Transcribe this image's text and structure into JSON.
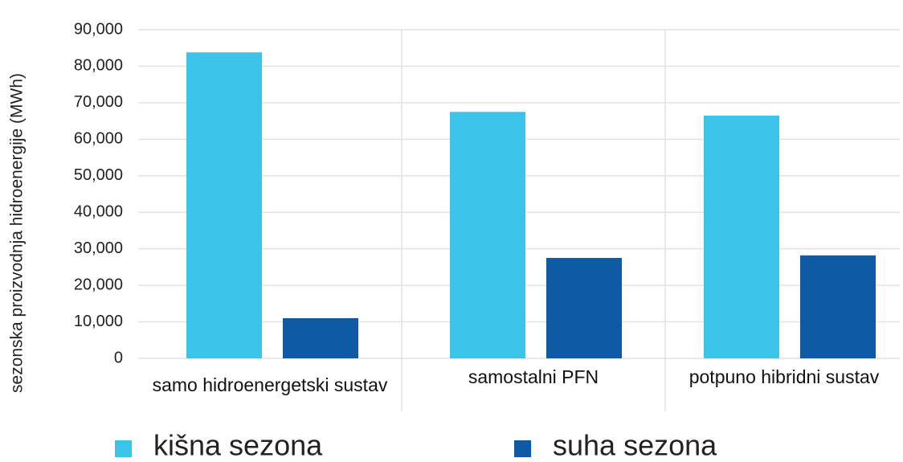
{
  "chart_data": {
    "type": "bar",
    "y_label": "sezonska proizvodnja hidroenergije (MWh)",
    "categories": [
      "samo hidroenergetski sustav",
      "samostalni PFN",
      "potpuno hibridni sustav"
    ],
    "series": [
      {
        "name": "kišna sezona",
        "color": "#3bc3ea",
        "values": [
          83800,
          67500,
          66500
        ]
      },
      {
        "name": "suha sezona",
        "color": "#0f5aa5",
        "values": [
          11000,
          27500,
          28200
        ]
      }
    ],
    "ylim": [
      0,
      90000
    ],
    "yticks": [
      0,
      {
        "value": 10000,
        "label": "10,000"
      },
      {
        "value": 20000,
        "label": "20,000"
      },
      {
        "value": 30000,
        "label": "30,000"
      },
      {
        "value": 40000,
        "label": "40,000"
      },
      {
        "value": 50000,
        "label": "50,000"
      },
      {
        "value": 60000,
        "label": "60,000"
      },
      {
        "value": 70000,
        "label": "70,000"
      },
      {
        "value": 80000,
        "label": "80,000"
      },
      {
        "value": 90000,
        "label": "90,000"
      }
    ],
    "grid": true
  }
}
